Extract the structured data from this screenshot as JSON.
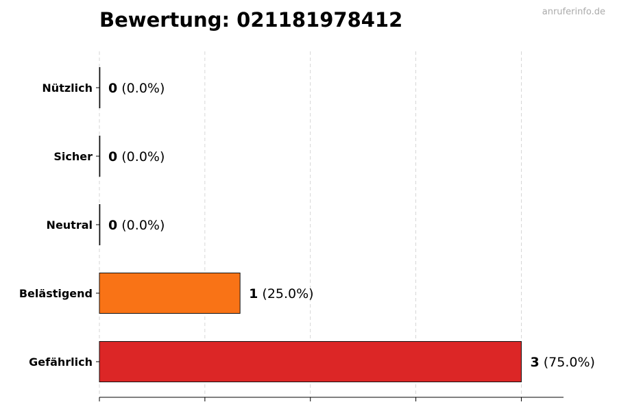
{
  "chart_data": {
    "type": "bar",
    "orientation": "horizontal",
    "title": "Bewertung: 021181978412",
    "categories": [
      "Nützlich",
      "Sicher",
      "Neutral",
      "Belästigend",
      "Gefährlich"
    ],
    "values": [
      0,
      0,
      0,
      1,
      3
    ],
    "labels": [
      "(0.0%)",
      "(0.0%)",
      "(0.0%)",
      "(25.0%)",
      "(75.0%)"
    ],
    "colors": [
      "#1a9850",
      "#66bd63",
      "#999999",
      "#f97316",
      "#dc2626"
    ],
    "xlim": [
      0,
      3.3
    ],
    "xticks": [
      0,
      0.75,
      1.5,
      2.25,
      3
    ],
    "grid": "x, dashed",
    "xlabel": "",
    "ylabel": ""
  },
  "watermark": "anruferinfo.de"
}
